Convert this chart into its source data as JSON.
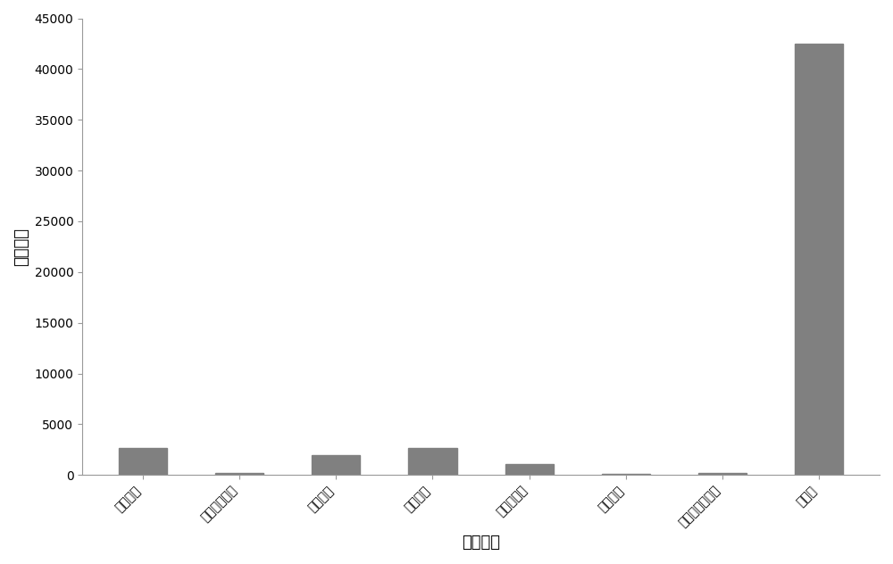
{
  "categories": [
    "硫基乙醇",
    "对硝基苯硫酚",
    "半胱氨酸",
    "谷胱甘肽",
    "高半胱氨酸",
    "硫氢化钠",
    "磷酸盐缓冲溶液",
    "苯硫酚"
  ],
  "values": [
    2700,
    200,
    2000,
    2700,
    1100,
    150,
    200,
    42500
  ],
  "bar_color": "#808080",
  "xlabel": "不同物质",
  "ylabel": "荧光强度",
  "ylim": [
    0,
    45000
  ],
  "yticks": [
    0,
    5000,
    10000,
    15000,
    20000,
    25000,
    30000,
    35000,
    40000,
    45000
  ],
  "ytick_labels": [
    "0",
    "5000",
    "10000",
    "15000",
    "20000",
    "25000",
    "30000",
    "35000",
    "40000",
    "45000"
  ],
  "bar_width": 0.5,
  "background_color": "#ffffff",
  "xlabel_fontsize": 13,
  "ylabel_fontsize": 13,
  "tick_fontsize": 10,
  "figsize": [
    10.0,
    6.32
  ],
  "dpi": 100
}
